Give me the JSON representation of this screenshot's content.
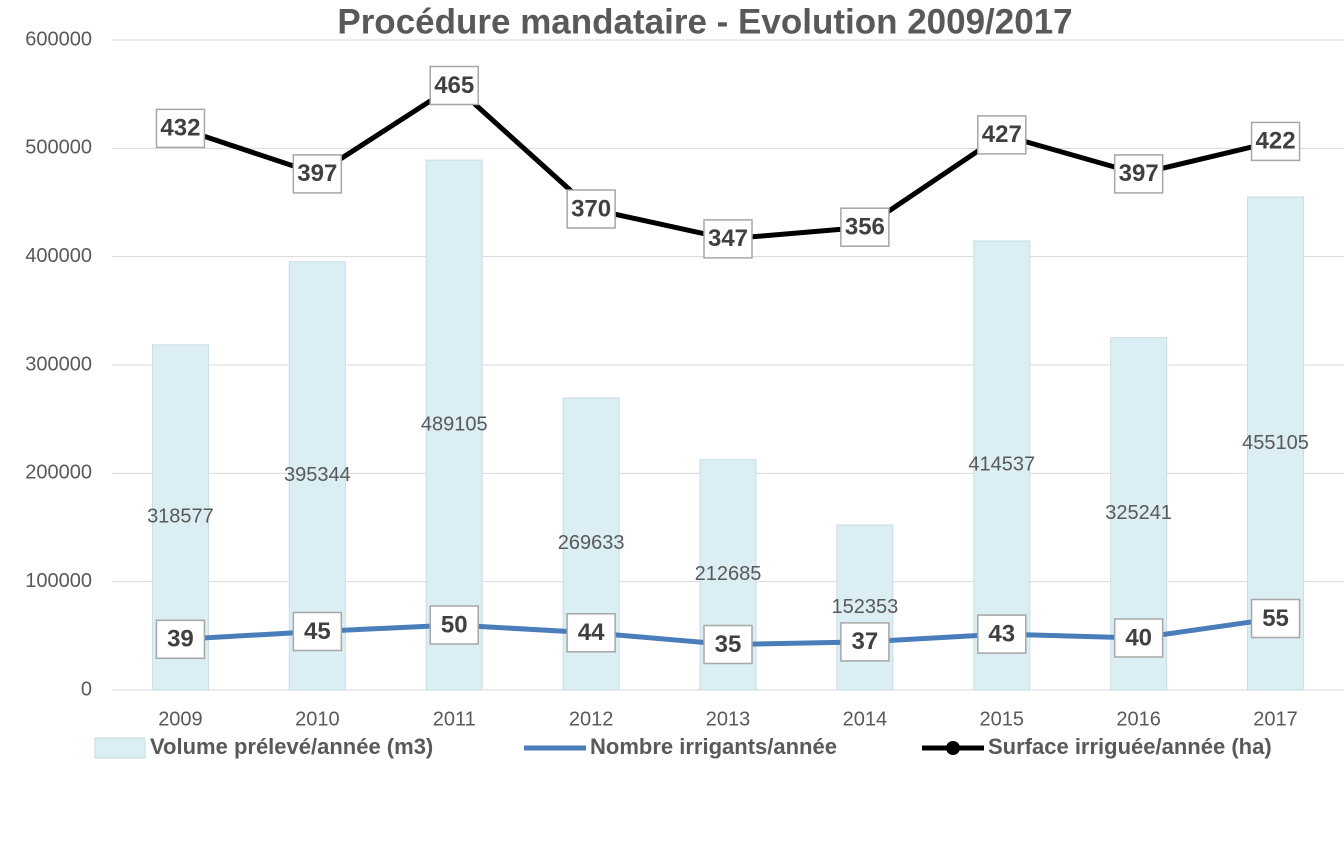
{
  "chart_data": {
    "type": "bar",
    "title": "Procédure mandataire - Evolution 2009/2017",
    "categories": [
      "2009",
      "2010",
      "2011",
      "2012",
      "2013",
      "2014",
      "2015",
      "2016",
      "2017"
    ],
    "ylim": [
      0,
      600000
    ],
    "yticks": [
      0,
      100000,
      200000,
      300000,
      400000,
      500000,
      600000
    ],
    "y2lim": [
      0,
      500
    ],
    "grid": true,
    "legend": "bottom",
    "series": [
      {
        "name": "Volume prélevé/année (m3)",
        "type": "bar",
        "color": "#daeef3",
        "values": [
          318577,
          395344,
          489105,
          269633,
          212685,
          152353,
          414537,
          325241,
          455105
        ]
      },
      {
        "name": "Nombre irrigants/année",
        "type": "line",
        "axis": "y2",
        "color": "#4a7ebb",
        "values": [
          39,
          45,
          50,
          44,
          35,
          37,
          43,
          40,
          55
        ]
      },
      {
        "name": "Surface irriguée/année (ha)",
        "type": "line",
        "axis": "y2",
        "color": "#000000",
        "marker": true,
        "values": [
          432,
          397,
          465,
          370,
          347,
          356,
          427,
          397,
          422
        ]
      }
    ]
  }
}
